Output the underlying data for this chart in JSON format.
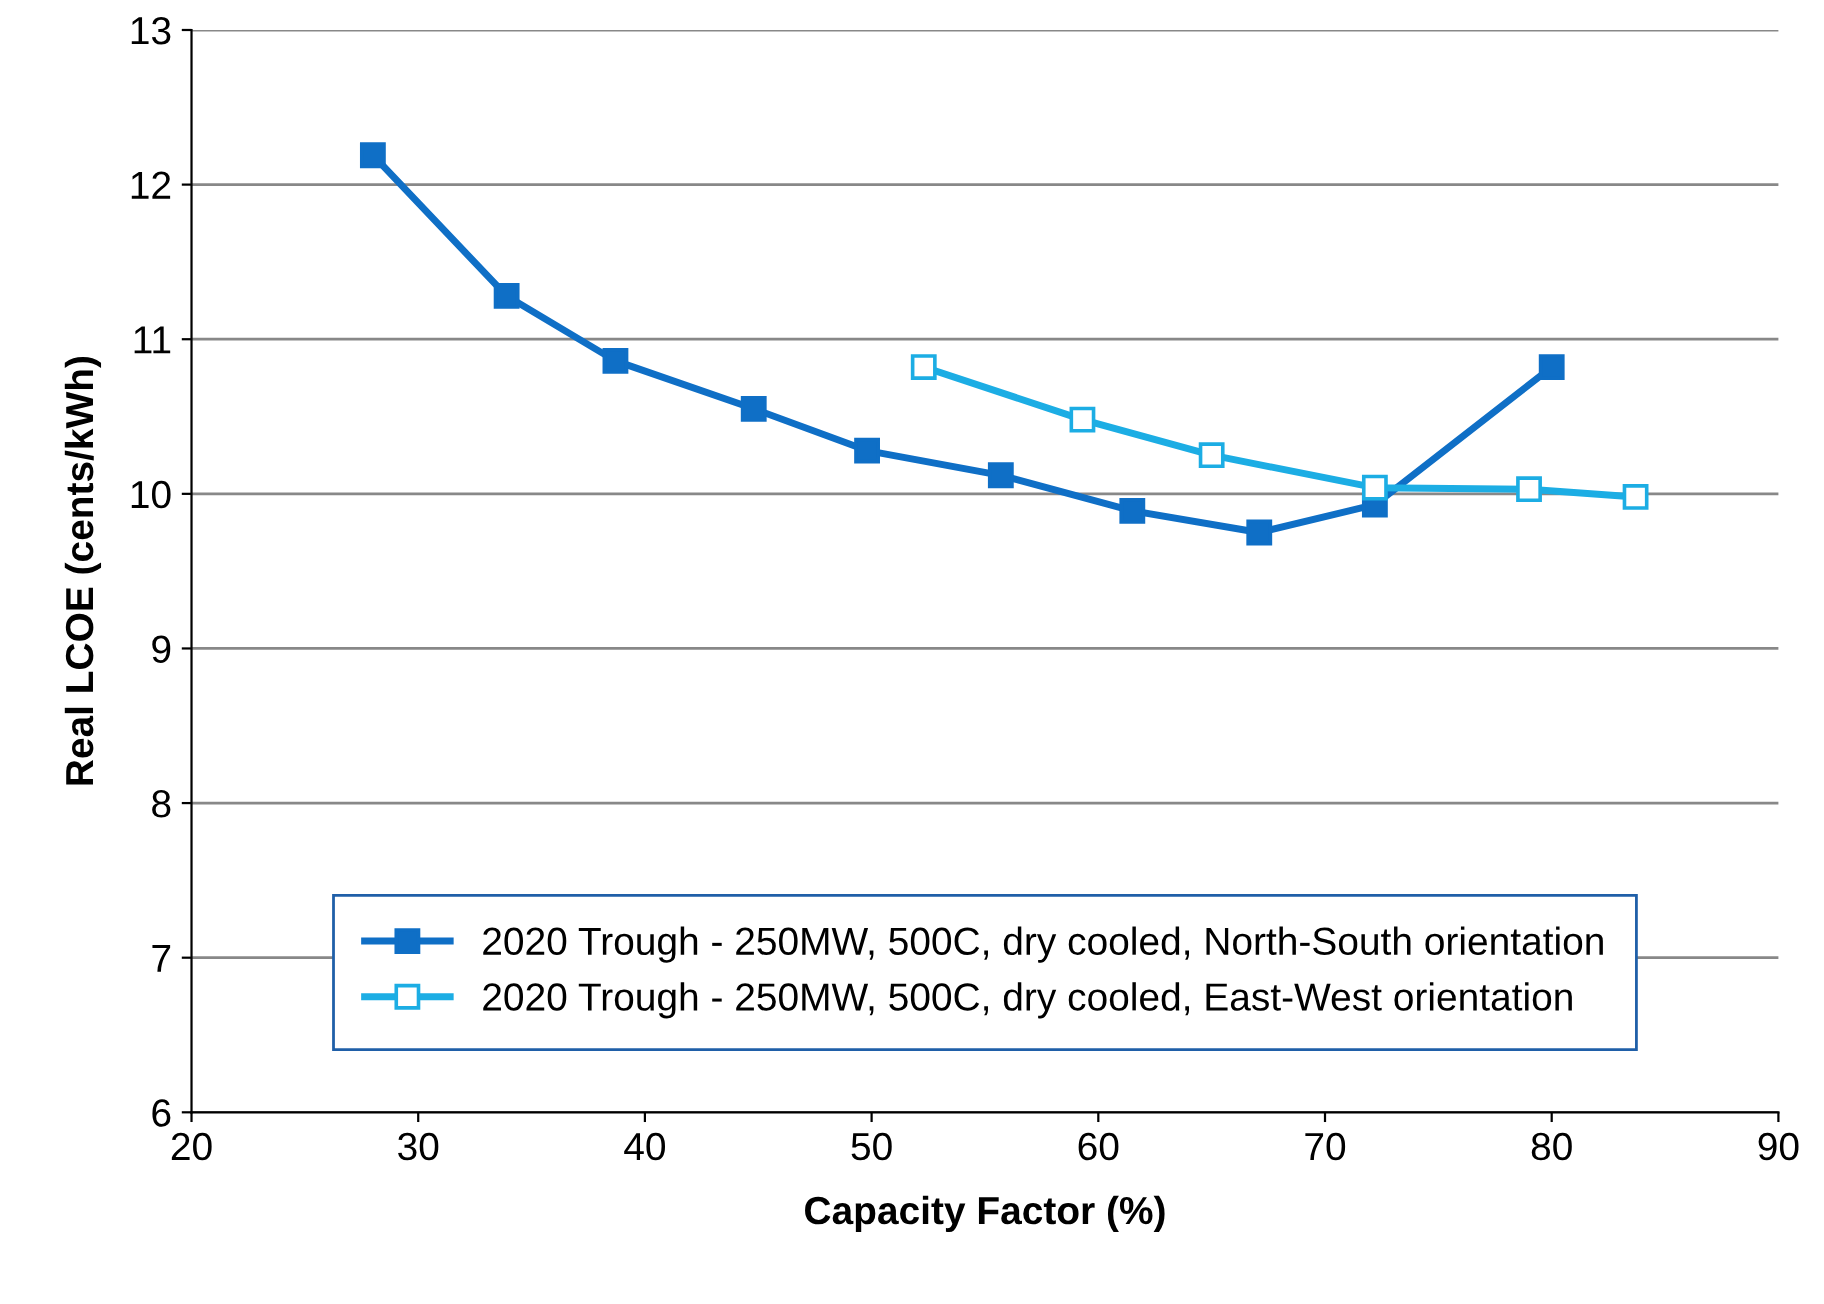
{
  "chart_data": {
    "type": "line",
    "xlabel": "Capacity Factor (%)",
    "ylabel": "Real LCOE (cents/kWh)",
    "xlim": [
      20,
      90
    ],
    "xticks": [
      20,
      30,
      40,
      50,
      60,
      70,
      80,
      90
    ],
    "ylim": [
      6,
      13
    ],
    "yticks": [
      6,
      7,
      8,
      9,
      10,
      11,
      12,
      13
    ],
    "grid": "y",
    "legend": "bottom",
    "marker": "square",
    "line_style": "solid",
    "series": [
      {
        "name": "2020 Trough - 250MW, 500C, dry cooled, North-South orientation",
        "color": "#0f6fc6",
        "x": [
          28,
          33.9,
          38.7,
          44.8,
          49.8,
          55.7,
          61.5,
          67.1,
          72.2,
          80
        ],
        "values": [
          12.19,
          11.28,
          10.86,
          10.55,
          10.28,
          10.12,
          9.89,
          9.75,
          9.93,
          10.82
        ]
      },
      {
        "name": "2020 Trough - 250MW, 500C, dry cooled, East-West orientation",
        "color": "#1cade4",
        "x": [
          52.3,
          59.3,
          65,
          72.2,
          79,
          83.7
        ],
        "values": [
          10.82,
          10.48,
          10.25,
          10.04,
          10.03,
          9.98
        ]
      }
    ]
  }
}
